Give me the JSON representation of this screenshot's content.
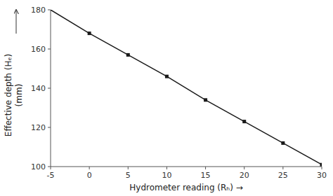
{
  "chart_data": {
    "type": "line",
    "xlabel": "Hydrometer reading (Rₕ) →",
    "ylabel": [
      "Effective  depth (Hₑ)",
      "(mm)"
    ],
    "series": [
      {
        "type": "line",
        "color": "#1a1a1a",
        "x": [
          -5,
          0,
          5,
          10,
          15,
          20,
          25,
          30
        ],
        "values": [
          180,
          168,
          157,
          146,
          134,
          123,
          112,
          101
        ]
      },
      {
        "type": "scatter",
        "marker": "square",
        "color": "#1a1a1a",
        "x": [
          0,
          5,
          10,
          15,
          20,
          25,
          30
        ],
        "values": [
          168,
          157,
          146,
          134,
          123,
          112,
          101
        ]
      }
    ],
    "xlim": [
      -5,
      30
    ],
    "ylim": [
      100,
      180
    ],
    "xticks": [
      -5,
      0,
      5,
      10,
      15,
      20,
      25,
      30
    ],
    "yticks": [
      100,
      120,
      140,
      160,
      180
    ],
    "grid": false
  }
}
